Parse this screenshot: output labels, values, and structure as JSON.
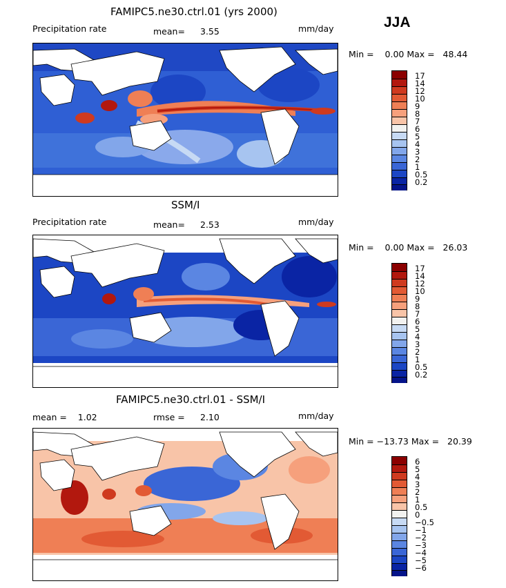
{
  "season": "JJA",
  "panels": [
    {
      "title": "FAMIPC5.ne30.ctrl.01 (yrs 2000)",
      "left_label": "Precipitation rate",
      "stat_label": "mean=",
      "stat_value": "3.55",
      "units": "mm/day",
      "range_text": "Min =    0.00 Max =   48.44"
    },
    {
      "title": "SSM/I",
      "left_label": "Precipitation rate",
      "stat_label": "mean=",
      "stat_value": "2.53",
      "units": "mm/day",
      "range_text": "Min =    0.00 Max =   26.03"
    },
    {
      "title": "FAMIPC5.ne30.ctrl.01 - SSM/I",
      "left_label": "mean =    1.02",
      "stat_label": "rmse =",
      "stat_value": "2.10",
      "units": "mm/day",
      "range_text": "Min = −13.73 Max =   20.39"
    }
  ],
  "chart_data": [
    {
      "type": "heatmap",
      "title": "FAMIPC5.ne30.ctrl.01 (yrs 2000)",
      "variable": "Precipitation rate",
      "units": "mm/day",
      "mean": 3.55,
      "min": 0.0,
      "max": 48.44,
      "colorbar_levels": [
        "17",
        "14",
        "12",
        "10",
        "9",
        "8",
        "7",
        "6",
        "5",
        "4",
        "3",
        "2",
        "1",
        "0.5",
        "0.2"
      ],
      "colorbar_colors": [
        "#8b0000",
        "#b2180e",
        "#cf3a1f",
        "#e25a34",
        "#ef7f55",
        "#f6a07c",
        "#f8c4a8",
        "#f2f2f0",
        "#c7daf4",
        "#a7c4f0",
        "#82a6ea",
        "#5b86e2",
        "#3a66d6",
        "#1c46c4",
        "#0a24a4",
        "#05148a"
      ]
    },
    {
      "type": "heatmap",
      "title": "SSM/I",
      "variable": "Precipitation rate",
      "units": "mm/day",
      "mean": 2.53,
      "min": 0.0,
      "max": 26.03,
      "colorbar_levels": [
        "17",
        "14",
        "12",
        "10",
        "9",
        "8",
        "7",
        "6",
        "5",
        "4",
        "3",
        "2",
        "1",
        "0.5",
        "0.2"
      ],
      "colorbar_colors": [
        "#8b0000",
        "#b2180e",
        "#cf3a1f",
        "#e25a34",
        "#ef7f55",
        "#f6a07c",
        "#f8c4a8",
        "#f2f2f0",
        "#c7daf4",
        "#a7c4f0",
        "#82a6ea",
        "#5b86e2",
        "#3a66d6",
        "#1c46c4",
        "#0a24a4",
        "#05148a"
      ]
    },
    {
      "type": "heatmap",
      "title": "FAMIPC5.ne30.ctrl.01 - SSM/I",
      "units": "mm/day",
      "mean": 1.02,
      "rmse": 2.1,
      "min": -13.73,
      "max": 20.39,
      "colorbar_levels": [
        "6",
        "5",
        "4",
        "3",
        "2",
        "1",
        "0.5",
        "0",
        "−0.5",
        "−1",
        "−2",
        "−3",
        "−4",
        "−5",
        "−6"
      ],
      "colorbar_colors": [
        "#8b0000",
        "#b2180e",
        "#cf3a1f",
        "#e25a34",
        "#ef7f55",
        "#f6a07c",
        "#f8c4a8",
        "#f2f2f0",
        "#c7daf4",
        "#a7c4f0",
        "#82a6ea",
        "#5b86e2",
        "#3a66d6",
        "#1c46c4",
        "#0a24a4",
        "#05148a"
      ]
    }
  ]
}
